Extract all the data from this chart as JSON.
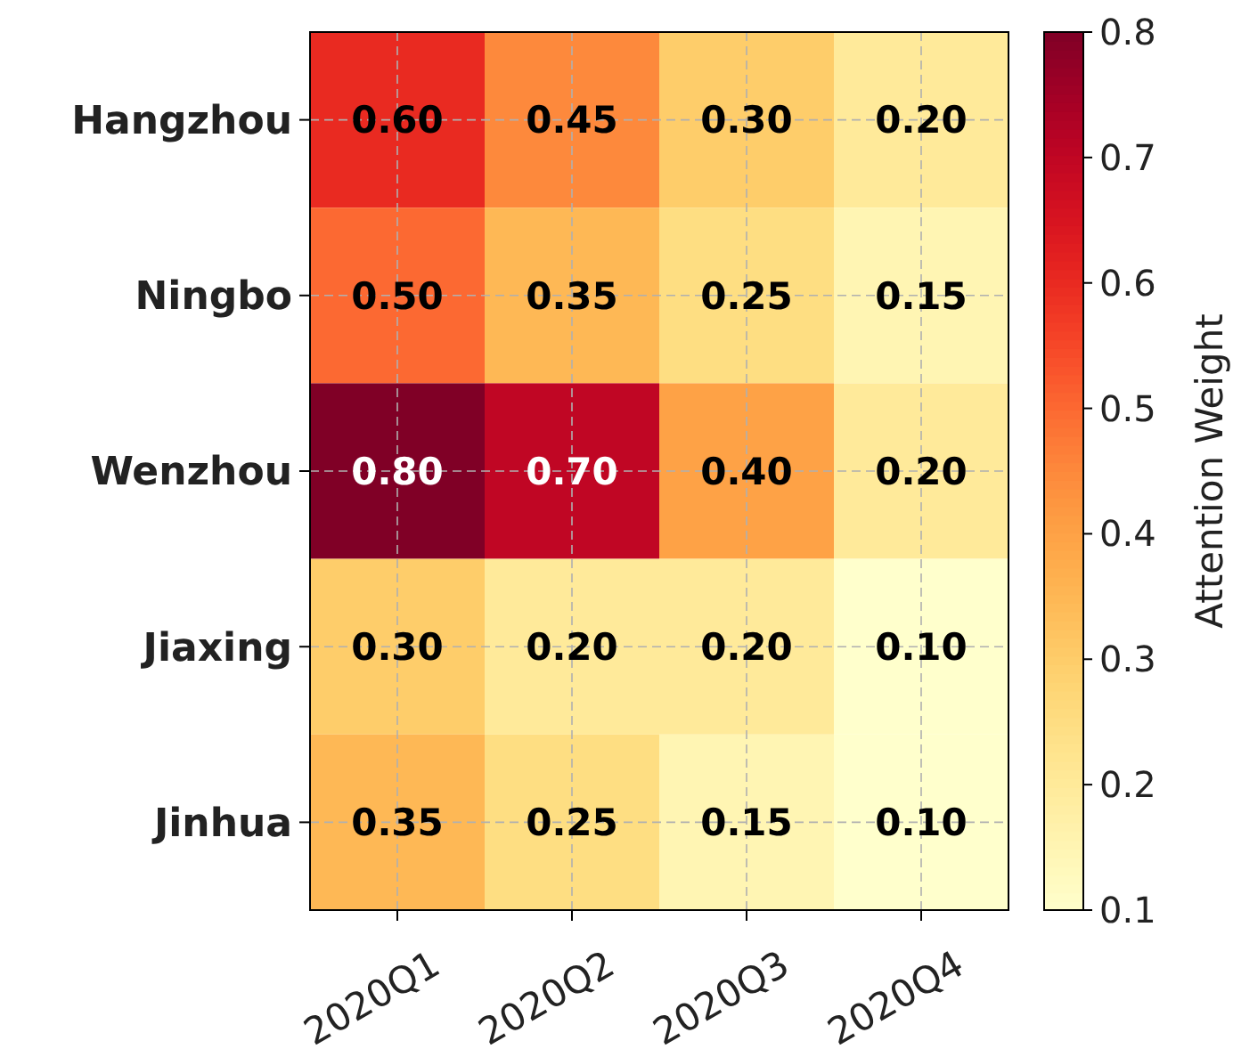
{
  "chart_data": {
    "type": "heatmap",
    "categories": [
      "2020Q1",
      "2020Q2",
      "2020Q3",
      "2020Q4"
    ],
    "y_categories": [
      "Hangzhou",
      "Ningbo",
      "Wenzhou",
      "Jiaxing",
      "Jinhua"
    ],
    "cells": [
      [
        0.6,
        0.45,
        0.3,
        0.2
      ],
      [
        0.5,
        0.35,
        0.25,
        0.15
      ],
      [
        0.8,
        0.7,
        0.4,
        0.2
      ],
      [
        0.3,
        0.2,
        0.2,
        0.1
      ],
      [
        0.35,
        0.25,
        0.15,
        0.1
      ]
    ],
    "cell_labels": [
      [
        "0.60",
        "0.45",
        "0.30",
        "0.20"
      ],
      [
        "0.50",
        "0.35",
        "0.25",
        "0.15"
      ],
      [
        "0.80",
        "0.70",
        "0.40",
        "0.20"
      ],
      [
        "0.30",
        "0.20",
        "0.20",
        "0.10"
      ],
      [
        "0.35",
        "0.25",
        "0.15",
        "0.10"
      ]
    ],
    "clim": [
      0.1,
      0.8
    ],
    "cticks": [
      0.1,
      0.2,
      0.3,
      0.4,
      0.5,
      0.6,
      0.7,
      0.8
    ],
    "clabel": "Attention Weight",
    "data_labels": true,
    "grid": true
  }
}
